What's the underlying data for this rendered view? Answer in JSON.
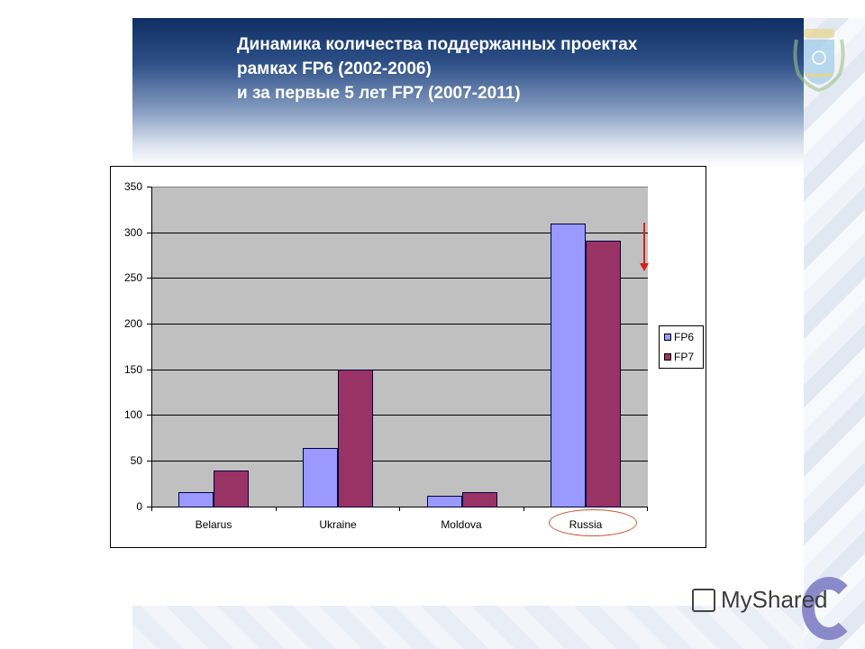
{
  "slide": {
    "title_lines": [
      "Динамика количества поддержанных проектах",
      "рамках  FP6 (2002-2006)",
      "и за первые 5 лет FP7 (2007-2011)"
    ],
    "watermark": "MyShared"
  },
  "chart_data": {
    "type": "bar",
    "title": "Динамика количества поддержанных проектах рамках FP6 (2002-2006) и за первые 5 лет FP7 (2007-2011)",
    "categories": [
      "Belarus",
      "Ukraine",
      "Moldova",
      "Russia"
    ],
    "series": [
      {
        "name": "FP6",
        "color": "#9999ff",
        "values": [
          16,
          64,
          12,
          310
        ]
      },
      {
        "name": "FP7",
        "color": "#993366",
        "values": [
          39,
          150,
          16,
          291
        ]
      }
    ],
    "xlabel": "",
    "ylabel": "",
    "ylim": [
      0,
      350
    ],
    "yticks": [
      "0",
      "50",
      "100",
      "150",
      "200",
      "250",
      "300",
      "350"
    ],
    "grid": true,
    "legend_position": "right",
    "annotations": [
      {
        "type": "arrow-down",
        "color": "#d42020",
        "near": "Russia"
      },
      {
        "type": "ellipse",
        "color": "#c9552f",
        "around": "Russia"
      }
    ]
  }
}
